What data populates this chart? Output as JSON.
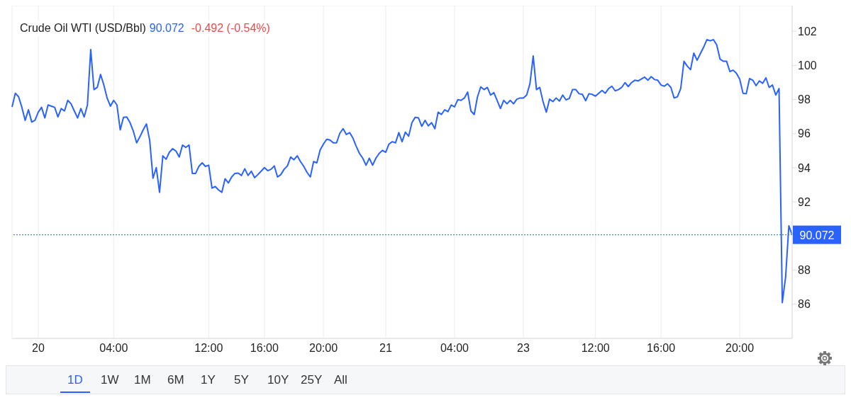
{
  "chart_data": {
    "type": "line",
    "title": "Crude Oil WTI (USD/Bbl)",
    "annotations": [
      "90.072",
      "-0.492 (-0.54%)",
      "1D",
      "1W",
      "1M",
      "6M",
      "1Y",
      "5Y",
      "10Y",
      "25Y",
      "All"
    ],
    "categories": [
      null,
      null,
      null,
      null,
      null,
      null,
      null,
      null,
      "20",
      null,
      null,
      null,
      null,
      null,
      null,
      null,
      null,
      null,
      null,
      null,
      null,
      null,
      null,
      null,
      null,
      null,
      null,
      null,
      null,
      null,
      null,
      "04:00",
      null,
      null,
      null,
      null,
      null,
      null,
      null,
      null,
      null,
      null,
      null,
      null,
      null,
      null,
      null,
      null,
      null,
      null,
      null,
      null,
      null,
      null,
      null,
      null,
      null,
      null,
      null,
      null,
      "12:00",
      null,
      null,
      null,
      null,
      null,
      null,
      null,
      null,
      null,
      null,
      null,
      null,
      null,
      null,
      null,
      null,
      "16:00",
      null,
      null,
      null,
      null,
      null,
      null,
      null,
      null,
      null,
      null,
      null,
      null,
      null,
      null,
      null,
      null,
      null,
      "20:00",
      null,
      null,
      null,
      null,
      null,
      null,
      null,
      null,
      null,
      null,
      null,
      null,
      null,
      null,
      null,
      null,
      null,
      null,
      "21",
      null,
      null,
      null,
      null,
      null,
      null,
      null,
      null,
      null,
      null,
      null,
      null,
      null,
      null,
      null,
      null,
      null,
      null,
      null,
      null,
      "04:00",
      null,
      null,
      null,
      null,
      null,
      null,
      null,
      null,
      null,
      null,
      null,
      null,
      null,
      null,
      null,
      null,
      null,
      null,
      null,
      null,
      "23",
      null,
      null,
      null,
      null,
      null,
      null,
      null,
      null,
      null,
      null,
      null,
      null,
      null,
      null,
      null,
      null,
      null,
      null,
      null,
      null,
      null,
      "12:00",
      null,
      null,
      null,
      null,
      null,
      null,
      null,
      null,
      null,
      null,
      null,
      null,
      null,
      null,
      null,
      null,
      null,
      null,
      null,
      "16:00",
      null,
      null,
      null,
      null,
      null,
      null,
      null,
      null,
      null,
      null,
      null,
      null,
      null,
      null,
      null,
      null,
      null,
      null,
      null,
      null,
      null,
      null,
      null,
      "20:00",
      null,
      null,
      null,
      null,
      null,
      null,
      null,
      null,
      null,
      null,
      null,
      null,
      null,
      null,
      null,
      null
    ],
    "series": [
      {
        "color": "#2962ff",
        "values": [
          97.57,
          98.37,
          98.16,
          97.54,
          96.78,
          97.4,
          96.68,
          96.78,
          97.26,
          97.54,
          96.92,
          97.68,
          97.61,
          97.54,
          96.98,
          97.47,
          97.33,
          97.95,
          97.75,
          97.33,
          96.92,
          97.47,
          96.98,
          97.68,
          100.93,
          98.58,
          98.71,
          99.47,
          98.85,
          98.09,
          97.61,
          97.95,
          97.68,
          96.22,
          96.96,
          96.98,
          96.64,
          96.15,
          95.46,
          95.81,
          96.22,
          96.57,
          95.6,
          93.39,
          94.01,
          92.56,
          94.7,
          94.5,
          94.91,
          95.12,
          94.98,
          94.63,
          95.33,
          95.19,
          95.33,
          93.67,
          93.67,
          94.08,
          94.29,
          94.08,
          94.15,
          92.81,
          92.9,
          92.7,
          92.56,
          93.36,
          93.11,
          93.46,
          93.67,
          93.69,
          93.55,
          93.94,
          93.55,
          93.8,
          93.42,
          93.6,
          93.8,
          94.01,
          93.83,
          93.91,
          94.11,
          93.46,
          93.6,
          93.91,
          94.11,
          94.63,
          94.47,
          94.7,
          94.36,
          94.08,
          93.73,
          93.46,
          94.36,
          94.29,
          95.05,
          95.39,
          95.67,
          95.63,
          95.46,
          95.46,
          96.02,
          96.29,
          95.95,
          96.06,
          95.74,
          95.26,
          94.84,
          94.56,
          94.15,
          94.56,
          94.15,
          94.56,
          94.84,
          95.02,
          94.91,
          95.39,
          95.53,
          95.46,
          96.06,
          95.53,
          96.09,
          95.85,
          96.64,
          96.96,
          96.92,
          96.43,
          96.78,
          96.46,
          96.64,
          96.29,
          97.26,
          97.12,
          97.4,
          97.29,
          97.68,
          97.57,
          97.99,
          97.95,
          98.09,
          98.44,
          97.33,
          97.12,
          98.16,
          98.74,
          98.58,
          98.71,
          98.26,
          98.4,
          97.95,
          97.47,
          97.95,
          97.75,
          97.95,
          97.75,
          98.02,
          98.09,
          98.09,
          98.26,
          98.92,
          100.55,
          98.58,
          98.71,
          97.88,
          97.26,
          98.02,
          97.88,
          98.09,
          97.91,
          98.26,
          97.98,
          98.06,
          98.58,
          98.58,
          98.34,
          98.3,
          97.93,
          98.34,
          98.3,
          98.2,
          98.37,
          98.53,
          98.37,
          98.64,
          98.78,
          98.51,
          98.58,
          98.71,
          98.99,
          98.76,
          98.99,
          99.13,
          99.09,
          99.2,
          99.31,
          99.13,
          99.34,
          99.17,
          99.13,
          98.85,
          98.78,
          98.92,
          98.71,
          98.09,
          98.16,
          98.64,
          100.24,
          99.96,
          99.75,
          100.72,
          100.3,
          100.69,
          101.07,
          101.51,
          101.44,
          101.51,
          101.2,
          100.37,
          100.24,
          100.24,
          99.64,
          99.72,
          99.54,
          99.2,
          98.37,
          98.34,
          99.23,
          99.13,
          98.81,
          99.09,
          98.95,
          99.27,
          98.71,
          98.85,
          98.26,
          98.64,
          86.1,
          87.58,
          90.6,
          90.072
        ]
      }
    ],
    "ylim": [
      84,
      103.5
    ],
    "yticks": [
      86,
      88,
      92,
      94,
      96,
      98,
      100,
      102
    ],
    "ref_lines": [
      {
        "axis": "y",
        "value": 90.072,
        "label": "90.072",
        "color": "#2962ff",
        "line_style": "dotted"
      }
    ],
    "grid": true,
    "marker": "none",
    "line_style": "solid"
  }
}
